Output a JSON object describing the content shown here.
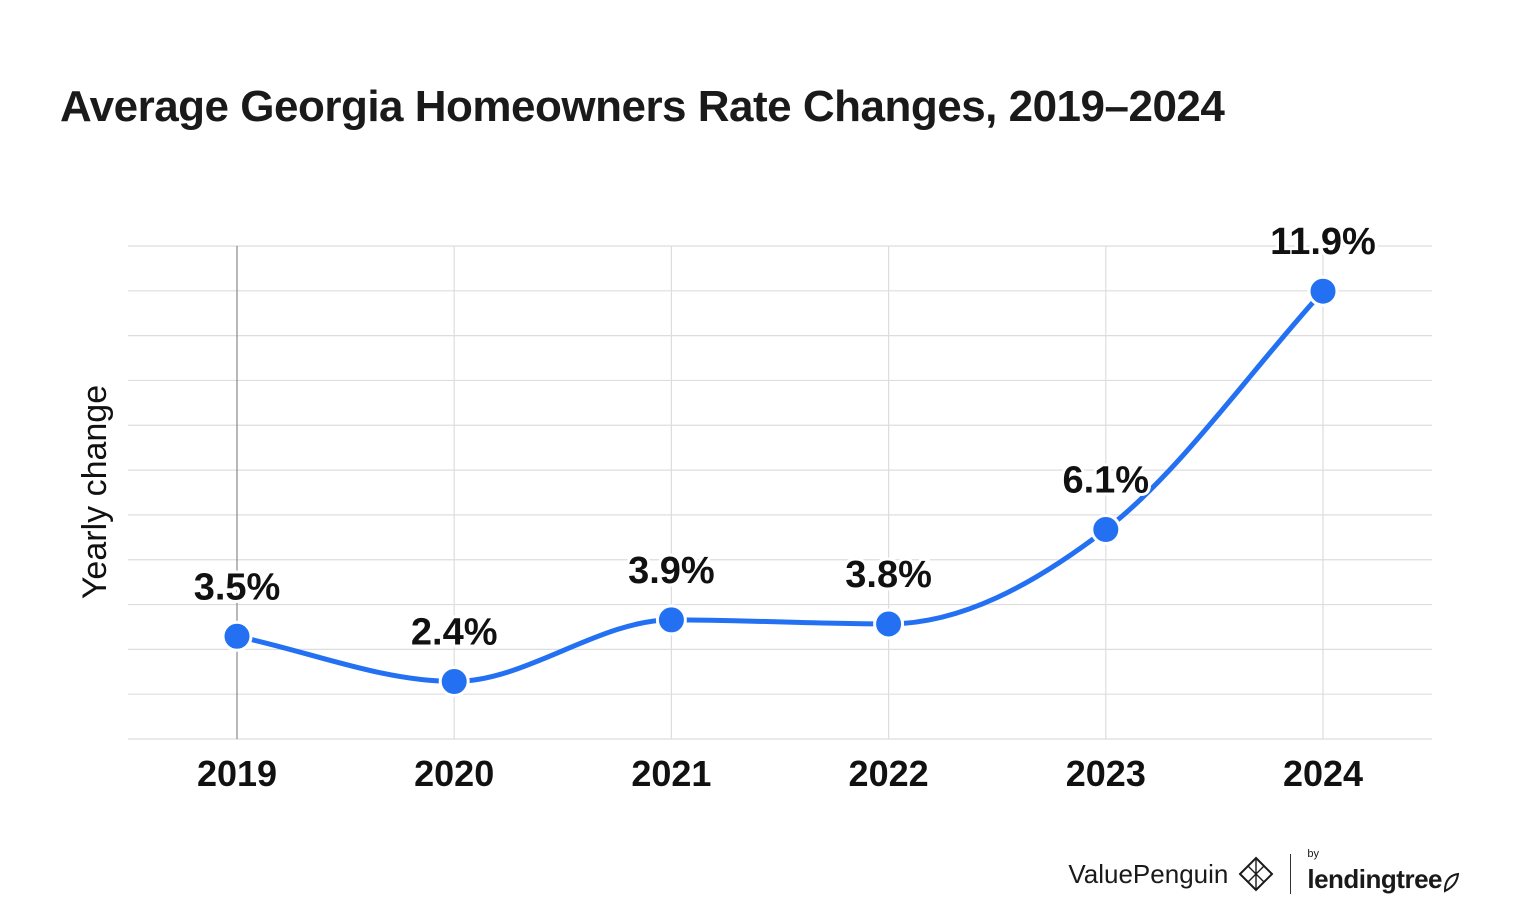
{
  "title": "Average Georgia Homeowners Rate Changes, 2019–2024",
  "footer": {
    "brand": "ValuePenguin",
    "by": "by",
    "partner": "lendingtree",
    "brand_icon": "penguin-diamond-icon",
    "partner_icon": "leaf-icon"
  },
  "colors": {
    "line": "#2371f2",
    "point": "#2371f2",
    "grid": "#dddddd",
    "text": "#111111"
  },
  "chart_data": {
    "type": "line",
    "title": "Average Georgia Homeowners Rate Changes, 2019–2024",
    "xlabel": "",
    "ylabel": "Yearly change",
    "categories": [
      "2019",
      "2020",
      "2021",
      "2022",
      "2023",
      "2024"
    ],
    "values": [
      3.5,
      2.4,
      3.9,
      3.8,
      6.1,
      11.9
    ],
    "data_labels": [
      "3.5%",
      "2.4%",
      "3.9%",
      "3.8%",
      "6.1%",
      "11.9%"
    ],
    "ylim": [
      1.0,
      13.0
    ],
    "grid": true,
    "smooth": true
  }
}
